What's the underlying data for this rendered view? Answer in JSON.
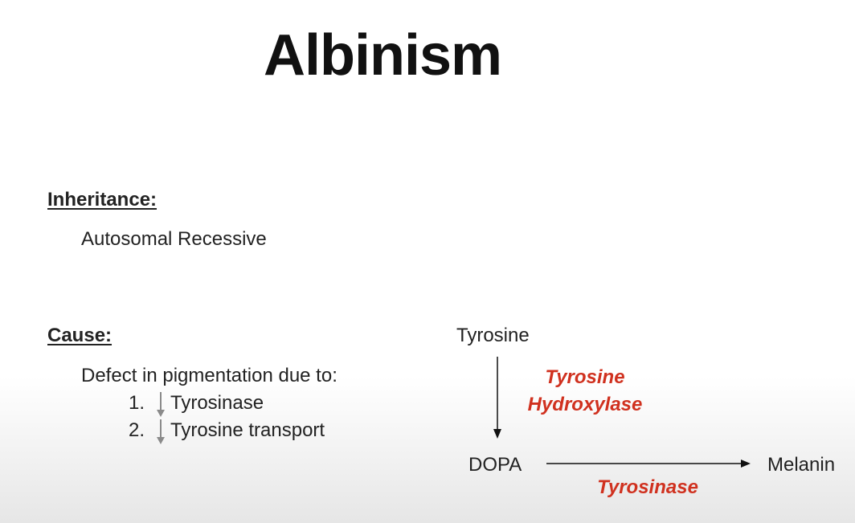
{
  "title": "Albinism",
  "inheritance": {
    "heading": "Inheritance:",
    "value": "Autosomal Recessive"
  },
  "cause": {
    "heading": "Cause:",
    "intro": "Defect in pigmentation due to:",
    "items": [
      {
        "number": "1.",
        "text": "Tyrosinase"
      },
      {
        "number": "2.",
        "text": "Tyrosine transport"
      }
    ]
  },
  "pathway": {
    "start": "Tyrosine",
    "middle": "DOPA",
    "end": "Melanin",
    "enzyme1_line1": "Tyrosine",
    "enzyme1_line2": "Hydroxylase",
    "enzyme2": "Tyrosinase"
  },
  "colors": {
    "enzyme": "#d0311f",
    "arrow_down_indicator": "#8a8a8a"
  }
}
